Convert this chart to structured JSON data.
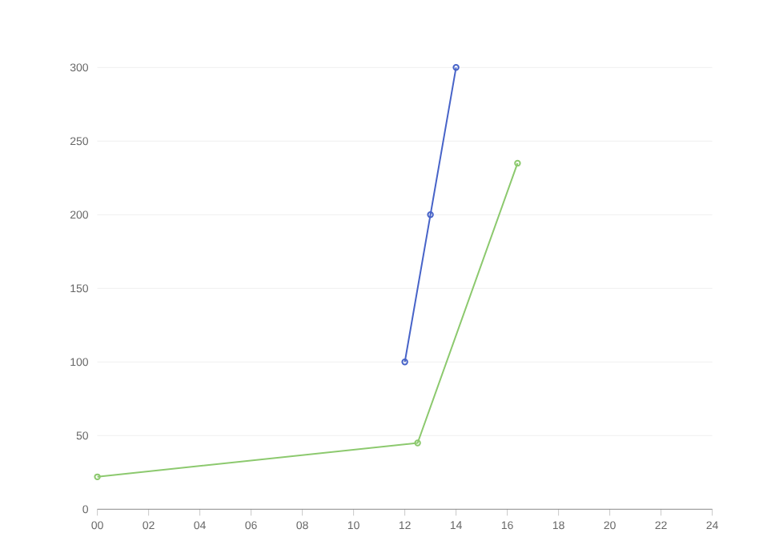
{
  "chart_data": {
    "type": "line",
    "series": [
      {
        "color": "#4763c8",
        "x": [
          12,
          13,
          14
        ],
        "values": [
          100,
          200,
          300
        ]
      },
      {
        "color": "#8cc96e",
        "x": [
          0,
          12.5,
          16.4
        ],
        "values": [
          22,
          45,
          235
        ]
      }
    ],
    "xlim": [
      0,
      24
    ],
    "xticks": [
      {
        "value": 0,
        "label": "00"
      },
      {
        "value": 2,
        "label": "02"
      },
      {
        "value": 4,
        "label": "04"
      },
      {
        "value": 6,
        "label": "06"
      },
      {
        "value": 8,
        "label": "08"
      },
      10,
      12,
      14,
      16,
      18,
      20,
      22,
      24
    ],
    "ylim": [
      0,
      300
    ],
    "yticks": [
      0,
      50,
      100,
      150,
      200,
      250,
      300
    ],
    "grid": "y",
    "marker": "circle",
    "line_style": "solid"
  }
}
